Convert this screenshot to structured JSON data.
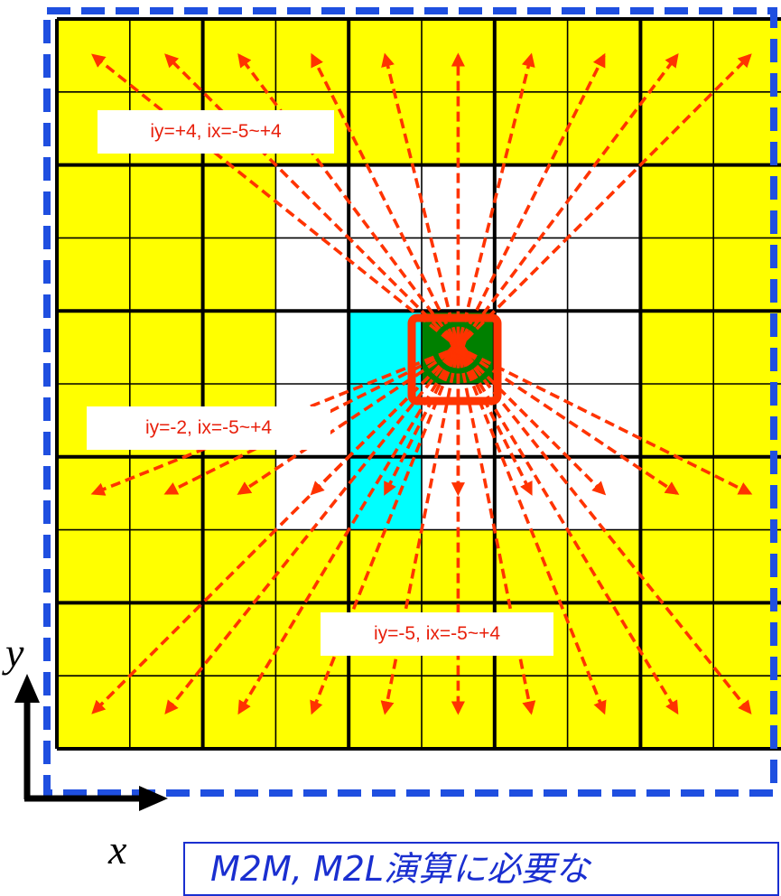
{
  "labels": {
    "top": "iy=+4, ix=-5~+4",
    "middle": "iy=-2, ix=-5~+4",
    "bottom": "iy=-5, ix=-5~+4"
  },
  "axes": {
    "x": "x",
    "y": "y"
  },
  "caption": "M2M, M2L演算に必要な",
  "colors": {
    "far_cell": "#ffff00",
    "near_cell": "#ffffff",
    "source_cell": "#008000",
    "neighbor_cell": "#00ffff",
    "arrow": "#ff3300",
    "border": "#1f4fe0",
    "label_text": "#e8200c",
    "caption_text": "#1a2fd0"
  },
  "grid": {
    "cells_per_side": 10,
    "neighbor_cells": [
      [
        4,
        4
      ],
      [
        4,
        5
      ],
      [
        4,
        6
      ]
    ],
    "source_cell": [
      5,
      4
    ],
    "near_region_rows": [
      2,
      6
    ],
    "near_region_cols": [
      3,
      7
    ]
  }
}
